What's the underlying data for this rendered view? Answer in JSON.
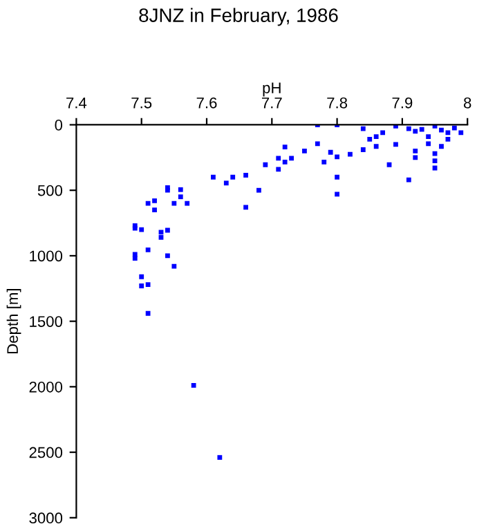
{
  "chart_data": {
    "type": "scatter",
    "title": "8JNZ in February, 1986",
    "xlabel": "pH",
    "ylabel": "Depth [m]",
    "xlim": [
      7.4,
      8
    ],
    "xticks": [
      7.4,
      7.5,
      7.6,
      7.7,
      7.8,
      7.9,
      {
        "value": 8,
        "label": "8"
      }
    ],
    "ylim": [
      3000,
      0
    ],
    "yticks": [
      0,
      500,
      1000,
      1500,
      2000,
      2500,
      3000
    ],
    "grid": false,
    "marker": "square",
    "series": [
      {
        "color": "#0000ff",
        "x": [
          7.77,
          7.8,
          7.84,
          7.89,
          7.91,
          7.92,
          7.93,
          7.94,
          7.95,
          7.96,
          7.97,
          7.98,
          7.99,
          7.87,
          7.86,
          7.85,
          7.86,
          7.84,
          7.82,
          7.89,
          7.94,
          7.96,
          7.97,
          7.92,
          7.92,
          7.95,
          7.95,
          7.95,
          7.88,
          7.91,
          7.77,
          7.79,
          7.8,
          7.78,
          7.8,
          7.8,
          7.75,
          7.73,
          7.72,
          7.71,
          7.72,
          7.71,
          7.69,
          7.66,
          7.64,
          7.63,
          7.61,
          7.68,
          7.66,
          7.54,
          7.54,
          7.56,
          7.56,
          7.57,
          7.55,
          7.51,
          7.52,
          7.52,
          7.49,
          7.49,
          7.5,
          7.53,
          7.53,
          7.54,
          7.51,
          7.49,
          7.49,
          7.54,
          7.55,
          7.5,
          7.5,
          7.51,
          7.51,
          7.58,
          7.62
        ],
        "values": [
          0,
          0,
          30,
          10,
          30,
          50,
          35,
          90,
          10,
          40,
          60,
          25,
          60,
          60,
          90,
          110,
          165,
          190,
          225,
          150,
          145,
          165,
          110,
          200,
          250,
          220,
          275,
          330,
          305,
          420,
          145,
          210,
          245,
          285,
          400,
          530,
          200,
          255,
          170,
          255,
          285,
          340,
          305,
          385,
          400,
          445,
          400,
          500,
          630,
          480,
          500,
          495,
          550,
          600,
          600,
          600,
          580,
          650,
          770,
          790,
          800,
          820,
          860,
          805,
          955,
          990,
          1020,
          1000,
          1080,
          1160,
          1230,
          1220,
          1440,
          1990,
          2540
        ]
      }
    ]
  }
}
